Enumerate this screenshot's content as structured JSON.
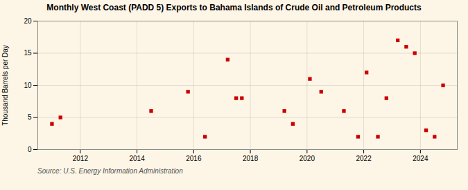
{
  "chart_data": {
    "type": "scatter",
    "title": "Monthly West Coast (PADD 5) Exports to Bahama Islands of Crude Oil and Petroleum Products",
    "ylabel": "Thousand Barrels per Day",
    "source": "Source: U.S. Energy Information Administration",
    "x": [
      2011.0,
      2011.3,
      2014.5,
      2015.8,
      2016.4,
      2017.2,
      2017.5,
      2017.7,
      2019.2,
      2019.5,
      2020.1,
      2020.5,
      2021.3,
      2021.8,
      2022.1,
      2022.5,
      2022.8,
      2023.2,
      2023.5,
      2023.8,
      2024.2,
      2024.5,
      2024.8
    ],
    "values": [
      4,
      5,
      6,
      9,
      2,
      14,
      8,
      8,
      6,
      4,
      11,
      9,
      6,
      2,
      12,
      2,
      8,
      17,
      16,
      15,
      3,
      2,
      10
    ],
    "color": "#cc0000",
    "marker": "square",
    "xlim": [
      2010.5,
      2025.3
    ],
    "ylim": [
      0,
      20
    ],
    "xticks": [
      2012,
      2014,
      2016,
      2018,
      2020,
      2022,
      2024
    ],
    "yticks": [
      0,
      5,
      10,
      15,
      20
    ],
    "grid": true
  }
}
